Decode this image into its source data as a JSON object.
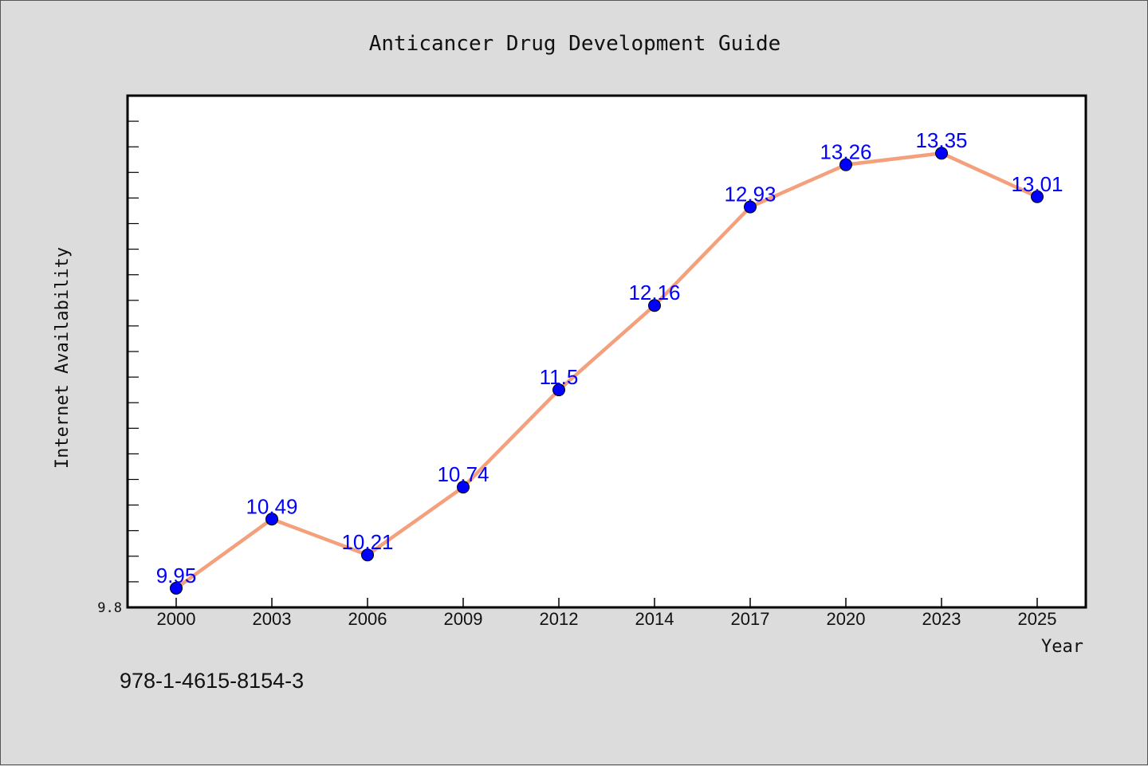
{
  "chart_data": {
    "type": "line",
    "title": "Anticancer Drug Development Guide",
    "xlabel": "Year",
    "ylabel": "Internet Availability",
    "categories": [
      "2000",
      "2003",
      "2006",
      "2009",
      "2012",
      "2014",
      "2017",
      "2020",
      "2023",
      "2025"
    ],
    "series": [
      {
        "values": [
          9.95,
          10.49,
          10.21,
          10.74,
          11.5,
          12.16,
          12.93,
          13.26,
          13.35,
          13.01
        ],
        "line_color": "#f4a07c",
        "marker_color": "#0000ff"
      }
    ],
    "data_labels": [
      "9.95",
      "10.49",
      "10.21",
      "10.74",
      "11.5",
      "12.16",
      "12.93",
      "13.26",
      "13.35",
      "13.01"
    ],
    "y_tick_labels": [
      "9.8"
    ],
    "ylim": [
      9.8,
      13.8
    ],
    "grid": false,
    "legend": "none"
  },
  "footer": {
    "isbn": "978-1-4615-8154-3"
  }
}
